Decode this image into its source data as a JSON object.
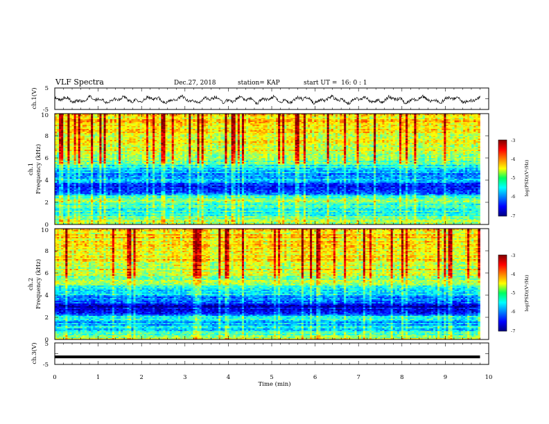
{
  "header": {
    "title": "VLF Spectra",
    "date": "Dec.27, 2018",
    "station": "station= KAP",
    "start": "start UT =  16: 0 : 1"
  },
  "chart_data": [
    {
      "type": "line",
      "ylabel": "ch.1(V)",
      "ylim": [
        -5,
        5
      ],
      "yticks": [
        "5",
        "-5"
      ],
      "xlim": [
        0,
        10
      ],
      "series": [
        {
          "x_range": [
            0,
            9.8
          ],
          "mean": -0.5,
          "amplitude": 1.5
        }
      ]
    },
    {
      "type": "heatmap",
      "ylabel_top": "ch.1",
      "ylabel": "Frequency (kHz)",
      "ylim": [
        0,
        10
      ],
      "yticks": [
        "0",
        "2",
        "4",
        "6",
        "8",
        "10"
      ],
      "xlim": [
        0,
        10
      ],
      "data_x_end": 9.8,
      "colorbar": {
        "label": "log(PSD)(V²/Hz)",
        "range": [
          -7,
          -3
        ],
        "ticks": [
          "-3",
          "-4",
          "-5",
          "-6",
          "-7"
        ]
      },
      "frequency_profile_log_psd": [
        [
          0.0,
          -4.6
        ],
        [
          0.5,
          -5.0
        ],
        [
          1.0,
          -5.3
        ],
        [
          1.5,
          -5.3
        ],
        [
          2.0,
          -5.0
        ],
        [
          2.5,
          -5.2
        ],
        [
          3.0,
          -6.5
        ],
        [
          3.5,
          -6.3
        ],
        [
          4.0,
          -5.6
        ],
        [
          4.5,
          -6.0
        ],
        [
          5.0,
          -5.5
        ],
        [
          5.5,
          -5.1
        ],
        [
          6.0,
          -4.7
        ],
        [
          7.0,
          -4.5
        ],
        [
          8.0,
          -4.4
        ],
        [
          9.0,
          -4.3
        ],
        [
          10.0,
          -4.3
        ]
      ]
    },
    {
      "type": "heatmap",
      "ylabel_top": "ch.2",
      "ylabel": "Frequency (kHz)",
      "ylim": [
        0,
        10
      ],
      "yticks": [
        "0",
        "2",
        "4",
        "6",
        "8",
        "10"
      ],
      "xlim": [
        0,
        10
      ],
      "data_x_end": 9.8,
      "colorbar": {
        "label": "log(PSD)(V²/Hz)",
        "range": [
          -7,
          -3
        ],
        "ticks": [
          "-3",
          "-4",
          "-5",
          "-6",
          "-7"
        ]
      },
      "frequency_profile_log_psd": [
        [
          0.0,
          -4.8
        ],
        [
          0.5,
          -5.2
        ],
        [
          1.0,
          -5.6
        ],
        [
          1.5,
          -5.8
        ],
        [
          2.0,
          -5.3
        ],
        [
          2.5,
          -6.6
        ],
        [
          3.0,
          -6.7
        ],
        [
          3.5,
          -6.0
        ],
        [
          4.0,
          -5.7
        ],
        [
          4.5,
          -5.4
        ],
        [
          5.0,
          -5.0
        ],
        [
          5.5,
          -4.8
        ],
        [
          6.0,
          -4.6
        ],
        [
          7.0,
          -4.4
        ],
        [
          8.0,
          -4.3
        ],
        [
          9.0,
          -4.3
        ],
        [
          10.0,
          -4.3
        ]
      ]
    },
    {
      "type": "line",
      "ylabel": "ch.3(V)",
      "ylim": [
        -5,
        5
      ],
      "yticks": [
        "5",
        "-5"
      ],
      "xlim": [
        0,
        10
      ],
      "xticks": [
        "0",
        "1",
        "2",
        "3",
        "4",
        "5",
        "6",
        "7",
        "8",
        "9",
        "10"
      ],
      "xlabel": "Time (min)",
      "series": [
        {
          "x": [
            0,
            9.8
          ],
          "y": [
            -1.5,
            -1.5
          ]
        }
      ]
    }
  ]
}
